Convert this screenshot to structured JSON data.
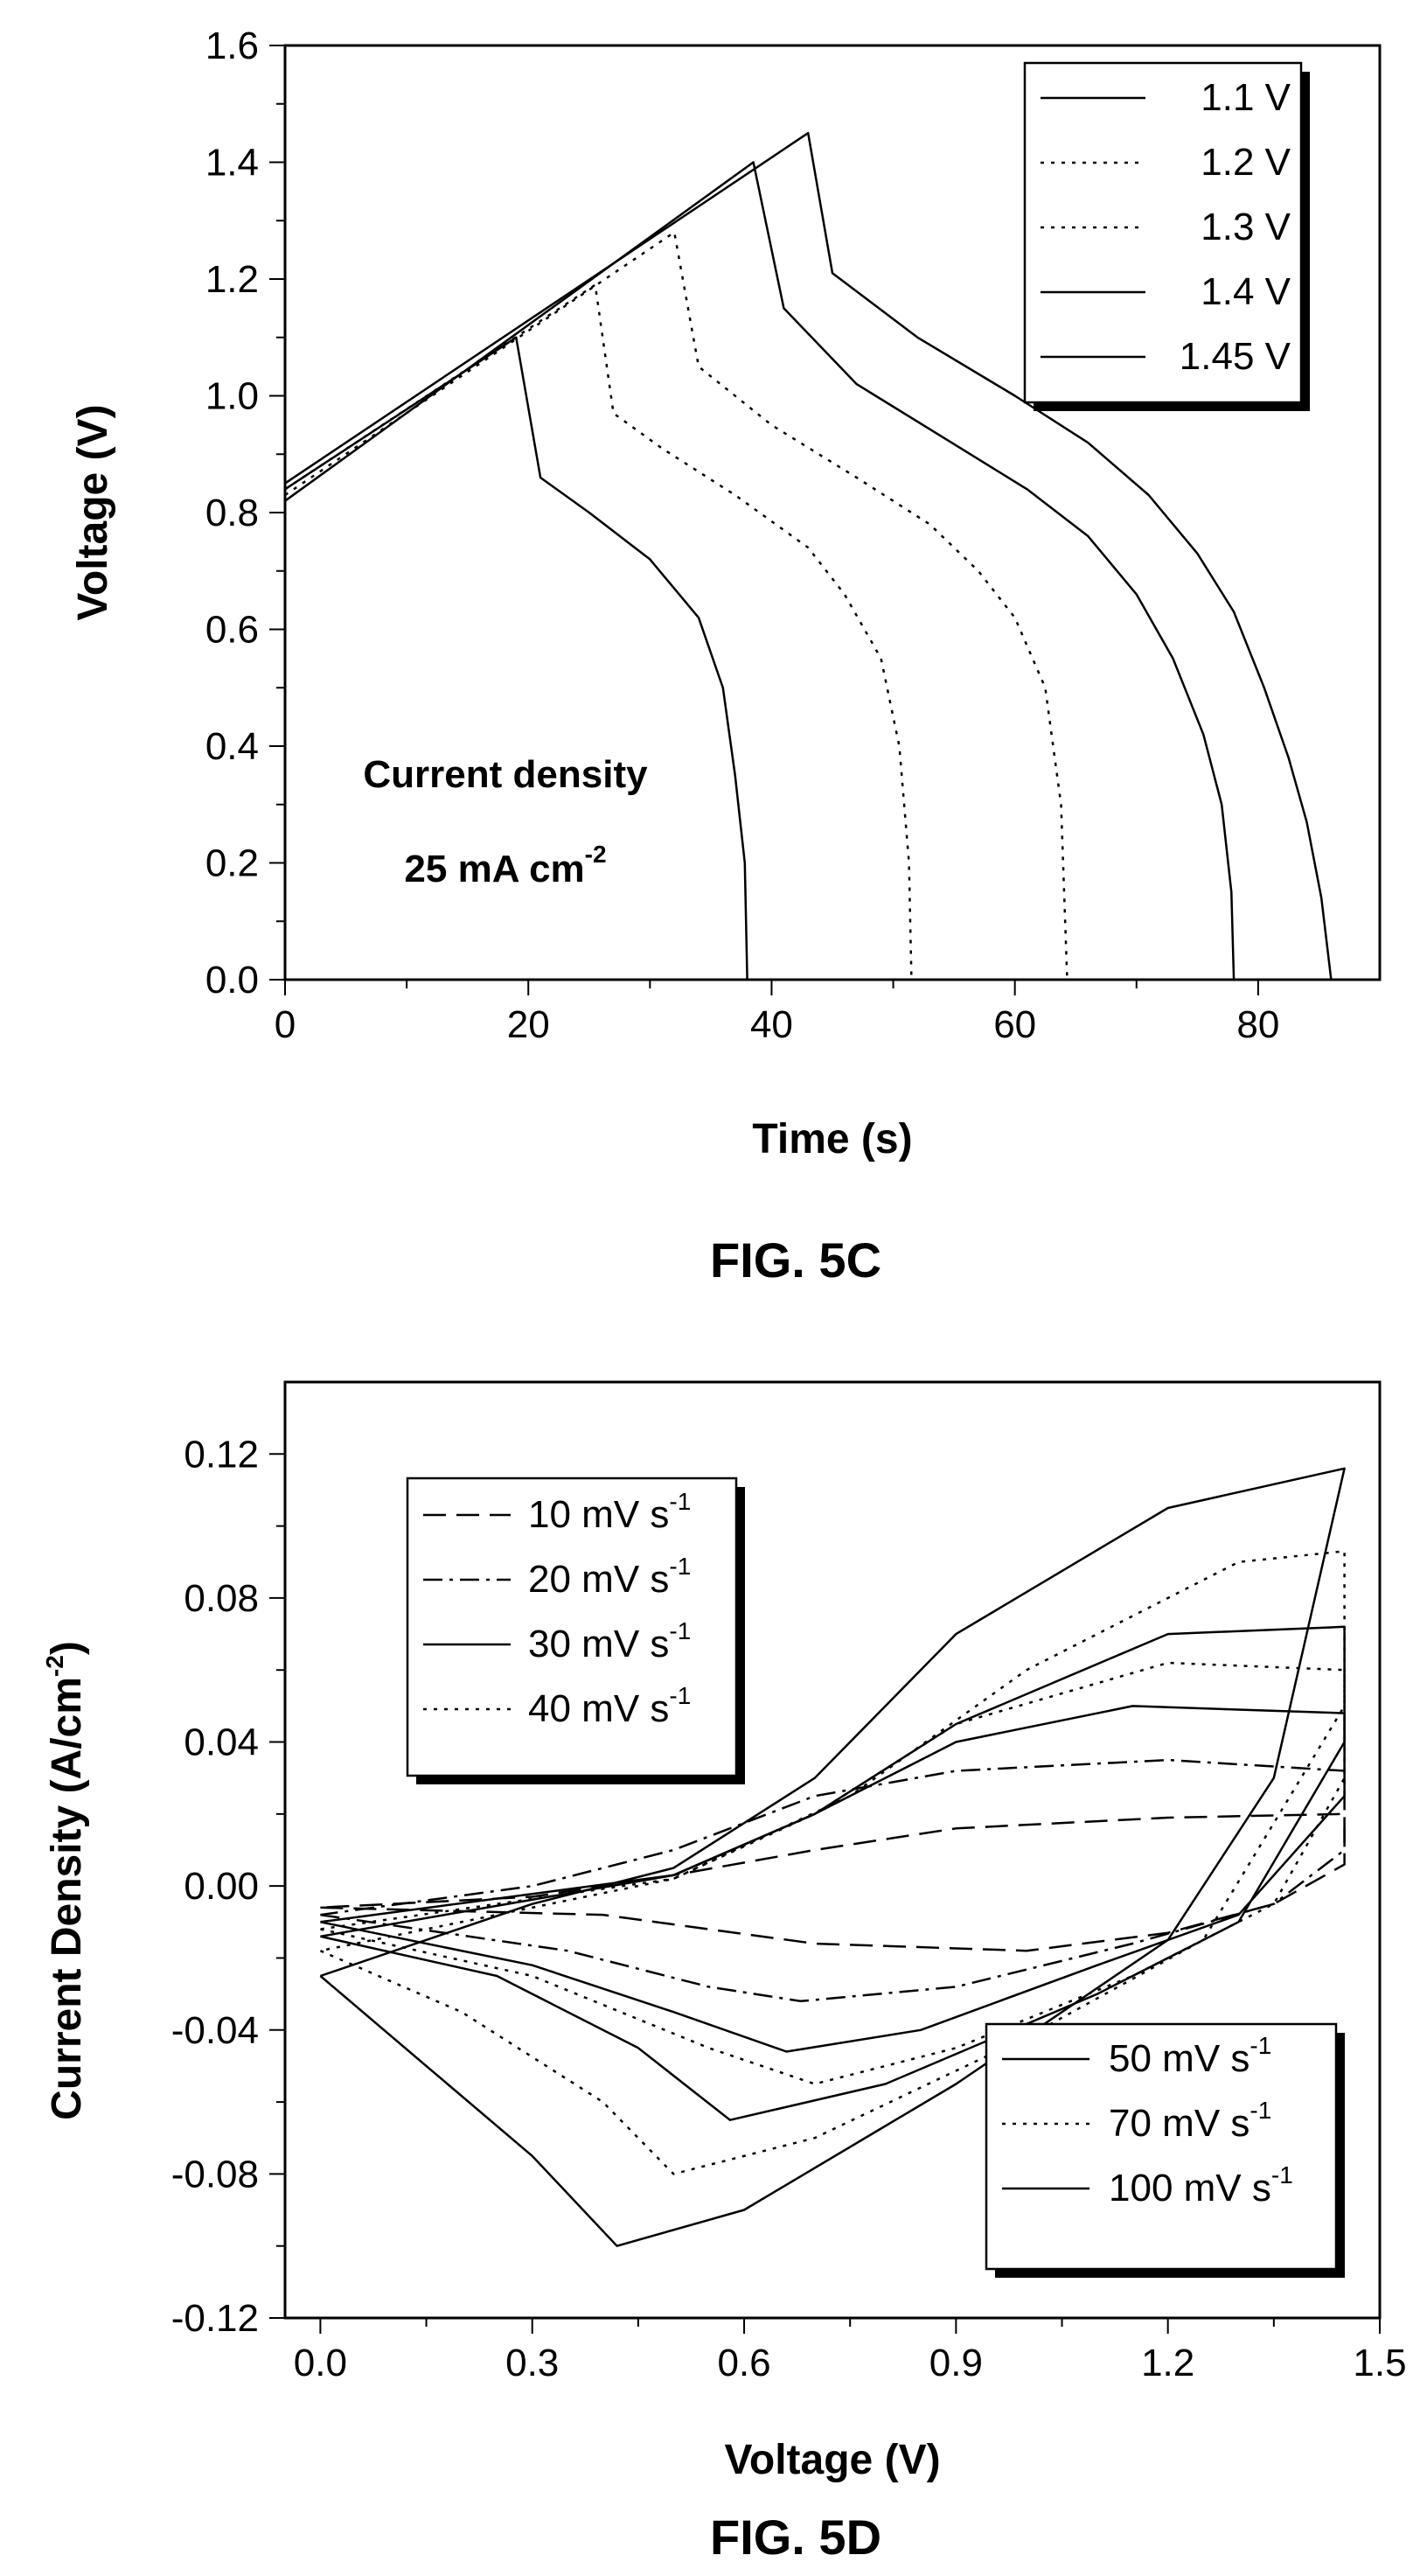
{
  "figures": [
    {
      "caption": "FIG. 5C",
      "annotation": [
        "Current density",
        "25 mA cm",
        "-2"
      ]
    },
    {
      "caption": "FIG. 5D"
    }
  ],
  "chart_data": [
    {
      "type": "line",
      "xlabel": "Time (s)",
      "ylabel": "Voltage (V)",
      "xlim": [
        0,
        90
      ],
      "ylim": [
        0,
        1.6
      ],
      "xticks": [
        0,
        20,
        40,
        60,
        80
      ],
      "yticks": [
        0.0,
        0.2,
        0.4,
        0.6,
        0.8,
        1.0,
        1.2,
        1.4,
        1.6
      ],
      "xtick_labels": [
        "0",
        "20",
        "40",
        "60",
        "80"
      ],
      "ytick_labels": [
        "0.0",
        "0.2",
        "0.4",
        "0.6",
        "0.8",
        "1.0",
        "1.2",
        "1.4",
        "1.6"
      ],
      "legend_position": "top-right",
      "grid": false,
      "series": [
        {
          "name": "1.1 V",
          "dash": "solid",
          "points": [
            [
              0,
              0.84
            ],
            [
              19,
              1.1
            ],
            [
              21,
              0.86
            ],
            [
              25,
              0.8
            ],
            [
              30,
              0.72
            ],
            [
              34,
              0.62
            ],
            [
              36,
              0.5
            ],
            [
              37,
              0.35
            ],
            [
              37.8,
              0.2
            ],
            [
              38,
              0.0
            ]
          ]
        },
        {
          "name": "1.2 V",
          "dash": "dotted",
          "points": [
            [
              0,
              0.84
            ],
            [
              25.5,
              1.19
            ],
            [
              27,
              0.97
            ],
            [
              31,
              0.91
            ],
            [
              37,
              0.83
            ],
            [
              43,
              0.74
            ],
            [
              46,
              0.66
            ],
            [
              49,
              0.55
            ],
            [
              50.5,
              0.4
            ],
            [
              51.3,
              0.2
            ],
            [
              51.5,
              0.0
            ]
          ]
        },
        {
          "name": "1.3 V",
          "dash": "dotted",
          "points": [
            [
              0,
              0.83
            ],
            [
              32,
              1.28
            ],
            [
              34,
              1.05
            ],
            [
              40,
              0.95
            ],
            [
              47,
              0.86
            ],
            [
              53,
              0.78
            ],
            [
              57,
              0.7
            ],
            [
              60,
              0.62
            ],
            [
              62.5,
              0.5
            ],
            [
              63.8,
              0.3
            ],
            [
              64.3,
              0.0
            ]
          ]
        },
        {
          "name": "1.4 V",
          "dash": "solid",
          "points": [
            [
              0,
              0.82
            ],
            [
              38.5,
              1.4
            ],
            [
              41,
              1.15
            ],
            [
              47,
              1.02
            ],
            [
              54,
              0.93
            ],
            [
              61,
              0.84
            ],
            [
              66,
              0.76
            ],
            [
              70,
              0.66
            ],
            [
              73,
              0.55
            ],
            [
              75.5,
              0.42
            ],
            [
              77,
              0.3
            ],
            [
              77.8,
              0.15
            ],
            [
              78,
              0.0
            ]
          ]
        },
        {
          "name": "1.45 V",
          "dash": "solid",
          "points": [
            [
              0,
              0.85
            ],
            [
              43,
              1.45
            ],
            [
              45,
              1.21
            ],
            [
              52,
              1.1
            ],
            [
              60,
              1.0
            ],
            [
              66,
              0.92
            ],
            [
              71,
              0.83
            ],
            [
              75,
              0.73
            ],
            [
              78,
              0.63
            ],
            [
              80.5,
              0.5
            ],
            [
              82.5,
              0.38
            ],
            [
              84,
              0.27
            ],
            [
              85.2,
              0.14
            ],
            [
              86,
              0.0
            ]
          ]
        }
      ]
    },
    {
      "type": "line",
      "xlabel": "Voltage (V)",
      "ylabel": "Current Density (A/cm",
      "ylabel_sup": "-2",
      "ylabel_tail": ")",
      "xlim": [
        -0.05,
        1.5
      ],
      "ylim": [
        -0.12,
        0.14
      ],
      "xticks": [
        0.0,
        0.3,
        0.6,
        0.9,
        1.2,
        1.5
      ],
      "yticks": [
        -0.12,
        -0.08,
        -0.04,
        0.0,
        0.04,
        0.08,
        0.12
      ],
      "xtick_labels": [
        "0.0",
        "0.3",
        "0.6",
        "0.9",
        "1.2",
        "1.5"
      ],
      "ytick_labels": [
        "-0.12",
        "-0.08",
        "-0.04",
        "0.00",
        "0.04",
        "0.08",
        "0.12"
      ],
      "legend_position": "top-left and bottom-right",
      "grid": false,
      "series": [
        {
          "name": "10 mV s",
          "name_sup": "-1",
          "legend_group": 0,
          "dash": "longdash",
          "points": [
            [
              0.0,
              -0.006
            ],
            [
              0.4,
              -0.008
            ],
            [
              0.7,
              -0.016
            ],
            [
              1.0,
              -0.018
            ],
            [
              1.2,
              -0.013
            ],
            [
              1.35,
              -0.005
            ],
            [
              1.45,
              0.006
            ],
            [
              1.45,
              0.02
            ],
            [
              1.2,
              0.019
            ],
            [
              0.9,
              0.016
            ],
            [
              0.7,
              0.01
            ],
            [
              0.5,
              0.003
            ],
            [
              0.3,
              -0.003
            ],
            [
              0.0,
              -0.006
            ]
          ]
        },
        {
          "name": "20 mV s",
          "name_sup": "-1",
          "legend_group": 0,
          "dash": "dashdot",
          "points": [
            [
              0.0,
              -0.008
            ],
            [
              0.35,
              -0.018
            ],
            [
              0.55,
              -0.028
            ],
            [
              0.68,
              -0.032
            ],
            [
              0.9,
              -0.028
            ],
            [
              1.15,
              -0.016
            ],
            [
              1.35,
              -0.005
            ],
            [
              1.45,
              0.01
            ],
            [
              1.45,
              0.032
            ],
            [
              1.2,
              0.035
            ],
            [
              0.9,
              0.032
            ],
            [
              0.7,
              0.025
            ],
            [
              0.5,
              0.01
            ],
            [
              0.3,
              0.0
            ],
            [
              0.0,
              -0.008
            ]
          ]
        },
        {
          "name": "30 mV s",
          "name_sup": "-1",
          "legend_group": 0,
          "dash": "solid",
          "points": [
            [
              0.0,
              -0.01
            ],
            [
              0.3,
              -0.022
            ],
            [
              0.5,
              -0.035
            ],
            [
              0.66,
              -0.046
            ],
            [
              0.85,
              -0.04
            ],
            [
              1.1,
              -0.022
            ],
            [
              1.3,
              -0.008
            ],
            [
              1.45,
              0.025
            ],
            [
              1.45,
              0.048
            ],
            [
              1.15,
              0.05
            ],
            [
              0.9,
              0.04
            ],
            [
              0.7,
              0.02
            ],
            [
              0.5,
              0.003
            ],
            [
              0.0,
              -0.01
            ]
          ]
        },
        {
          "name": "40 mV s",
          "name_sup": "-1",
          "legend_group": 0,
          "dash": "dotted",
          "points": [
            [
              0.0,
              -0.012
            ],
            [
              0.3,
              -0.025
            ],
            [
              0.55,
              -0.045
            ],
            [
              0.7,
              -0.055
            ],
            [
              0.9,
              -0.045
            ],
            [
              1.15,
              -0.025
            ],
            [
              1.35,
              -0.005
            ],
            [
              1.45,
              0.03
            ],
            [
              1.45,
              0.06
            ],
            [
              1.2,
              0.062
            ],
            [
              0.9,
              0.045
            ],
            [
              0.7,
              0.02
            ],
            [
              0.5,
              0.002
            ],
            [
              0.0,
              -0.012
            ]
          ]
        },
        {
          "name": "50 mV s",
          "name_sup": "-1",
          "legend_group": 1,
          "dash": "solid",
          "points": [
            [
              0.0,
              -0.014
            ],
            [
              0.25,
              -0.025
            ],
            [
              0.45,
              -0.045
            ],
            [
              0.58,
              -0.065
            ],
            [
              0.8,
              -0.055
            ],
            [
              1.1,
              -0.03
            ],
            [
              1.3,
              -0.01
            ],
            [
              1.45,
              0.04
            ],
            [
              1.45,
              0.072
            ],
            [
              1.2,
              0.07
            ],
            [
              0.9,
              0.045
            ],
            [
              0.7,
              0.02
            ],
            [
              0.5,
              0.003
            ],
            [
              0.0,
              -0.014
            ]
          ]
        },
        {
          "name": "70 mV s",
          "name_sup": "-1",
          "legend_group": 1,
          "dash": "dotted",
          "points": [
            [
              0.0,
              -0.018
            ],
            [
              0.2,
              -0.035
            ],
            [
              0.4,
              -0.06
            ],
            [
              0.5,
              -0.08
            ],
            [
              0.7,
              -0.07
            ],
            [
              1.0,
              -0.042
            ],
            [
              1.25,
              -0.015
            ],
            [
              1.45,
              0.05
            ],
            [
              1.45,
              0.093
            ],
            [
              1.3,
              0.09
            ],
            [
              1.0,
              0.06
            ],
            [
              0.75,
              0.025
            ],
            [
              0.5,
              0.002
            ],
            [
              0.0,
              -0.018
            ]
          ]
        },
        {
          "name": "100 mV s",
          "name_sup": "-1",
          "legend_group": 1,
          "dash": "solid",
          "points": [
            [
              0.0,
              -0.025
            ],
            [
              0.15,
              -0.05
            ],
            [
              0.3,
              -0.075
            ],
            [
              0.42,
              -0.1
            ],
            [
              0.6,
              -0.09
            ],
            [
              0.9,
              -0.055
            ],
            [
              1.2,
              -0.015
            ],
            [
              1.35,
              0.03
            ],
            [
              1.45,
              0.116
            ],
            [
              1.2,
              0.105
            ],
            [
              0.9,
              0.07
            ],
            [
              0.7,
              0.03
            ],
            [
              0.5,
              0.005
            ],
            [
              0.3,
              -0.005
            ],
            [
              0.0,
              -0.025
            ]
          ]
        }
      ]
    }
  ]
}
